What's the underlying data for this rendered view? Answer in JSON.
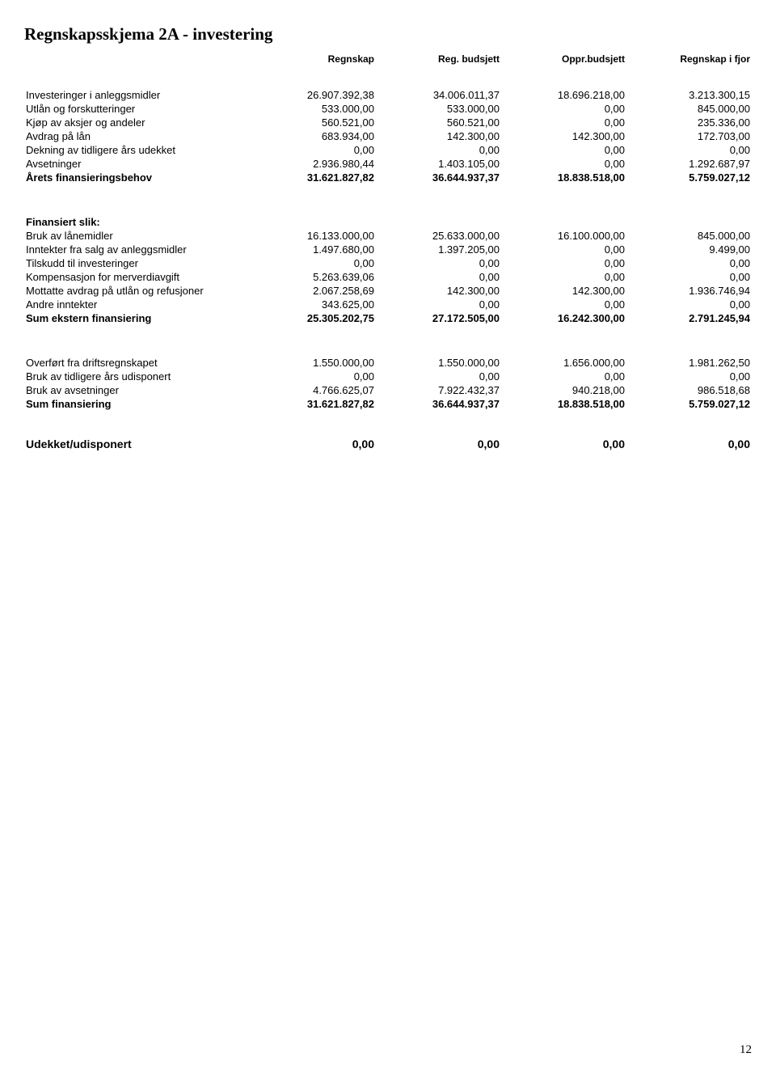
{
  "page": {
    "title": "Regnskapsskjema 2A - investering",
    "page_number": "12"
  },
  "headers": {
    "col1": "Regnskap",
    "col2": "Reg. budsjett",
    "col3": "Oppr.budsjett",
    "col4": "Regnskap i fjor"
  },
  "block1": {
    "rows": [
      {
        "label": "Investeringer i anleggsmidler",
        "c1": "26.907.392,38",
        "c2": "34.006.011,37",
        "c3": "18.696.218,00",
        "c4": "3.213.300,15"
      },
      {
        "label": "Utlån og forskutteringer",
        "c1": "533.000,00",
        "c2": "533.000,00",
        "c3": "0,00",
        "c4": "845.000,00"
      },
      {
        "label": "Kjøp av aksjer og andeler",
        "c1": "560.521,00",
        "c2": "560.521,00",
        "c3": "0,00",
        "c4": "235.336,00"
      },
      {
        "label": "Avdrag på lån",
        "c1": "683.934,00",
        "c2": "142.300,00",
        "c3": "142.300,00",
        "c4": "172.703,00"
      },
      {
        "label": "Dekning av tidligere års udekket",
        "c1": "0,00",
        "c2": "0,00",
        "c3": "0,00",
        "c4": "0,00"
      },
      {
        "label": "Avsetninger",
        "c1": "2.936.980,44",
        "c2": "1.403.105,00",
        "c3": "0,00",
        "c4": "1.292.687,97"
      },
      {
        "label": "Årets finansieringsbehov",
        "c1": "31.621.827,82",
        "c2": "36.644.937,37",
        "c3": "18.838.518,00",
        "c4": "5.759.027,12",
        "bold": true
      }
    ]
  },
  "block2": {
    "title": "Finansiert slik:",
    "rows": [
      {
        "label": "Bruk av lånemidler",
        "c1": "16.133.000,00",
        "c2": "25.633.000,00",
        "c3": "16.100.000,00",
        "c4": "845.000,00"
      },
      {
        "label": "Inntekter fra salg av anleggsmidler",
        "c1": "1.497.680,00",
        "c2": "1.397.205,00",
        "c3": "0,00",
        "c4": "9.499,00"
      },
      {
        "label": "Tilskudd til investeringer",
        "c1": "0,00",
        "c2": "0,00",
        "c3": "0,00",
        "c4": "0,00"
      },
      {
        "label": "Kompensasjon for merverdiavgift",
        "c1": "5.263.639,06",
        "c2": "0,00",
        "c3": "0,00",
        "c4": "0,00"
      },
      {
        "label": "Mottatte avdrag på utlån og refusjoner",
        "c1": "2.067.258,69",
        "c2": "142.300,00",
        "c3": "142.300,00",
        "c4": "1.936.746,94"
      },
      {
        "label": "Andre inntekter",
        "c1": "343.625,00",
        "c2": "0,00",
        "c3": "0,00",
        "c4": "0,00"
      },
      {
        "label": "Sum ekstern finansiering",
        "c1": "25.305.202,75",
        "c2": "27.172.505,00",
        "c3": "16.242.300,00",
        "c4": "2.791.245,94",
        "bold": true
      }
    ]
  },
  "block3": {
    "rows": [
      {
        "label": "Overført fra driftsregnskapet",
        "c1": "1.550.000,00",
        "c2": "1.550.000,00",
        "c3": "1.656.000,00",
        "c4": "1.981.262,50"
      },
      {
        "label": "Bruk av tidligere års udisponert",
        "c1": "0,00",
        "c2": "0,00",
        "c3": "0,00",
        "c4": "0,00"
      },
      {
        "label": "Bruk av avsetninger",
        "c1": "4.766.625,07",
        "c2": "7.922.432,37",
        "c3": "940.218,00",
        "c4": "986.518,68"
      },
      {
        "label": "Sum finansiering",
        "c1": "31.621.827,82",
        "c2": "36.644.937,37",
        "c3": "18.838.518,00",
        "c4": "5.759.027,12",
        "bold": true
      }
    ]
  },
  "block4": {
    "label": "Udekket/udisponert",
    "c1": "0,00",
    "c2": "0,00",
    "c3": "0,00",
    "c4": "0,00"
  }
}
